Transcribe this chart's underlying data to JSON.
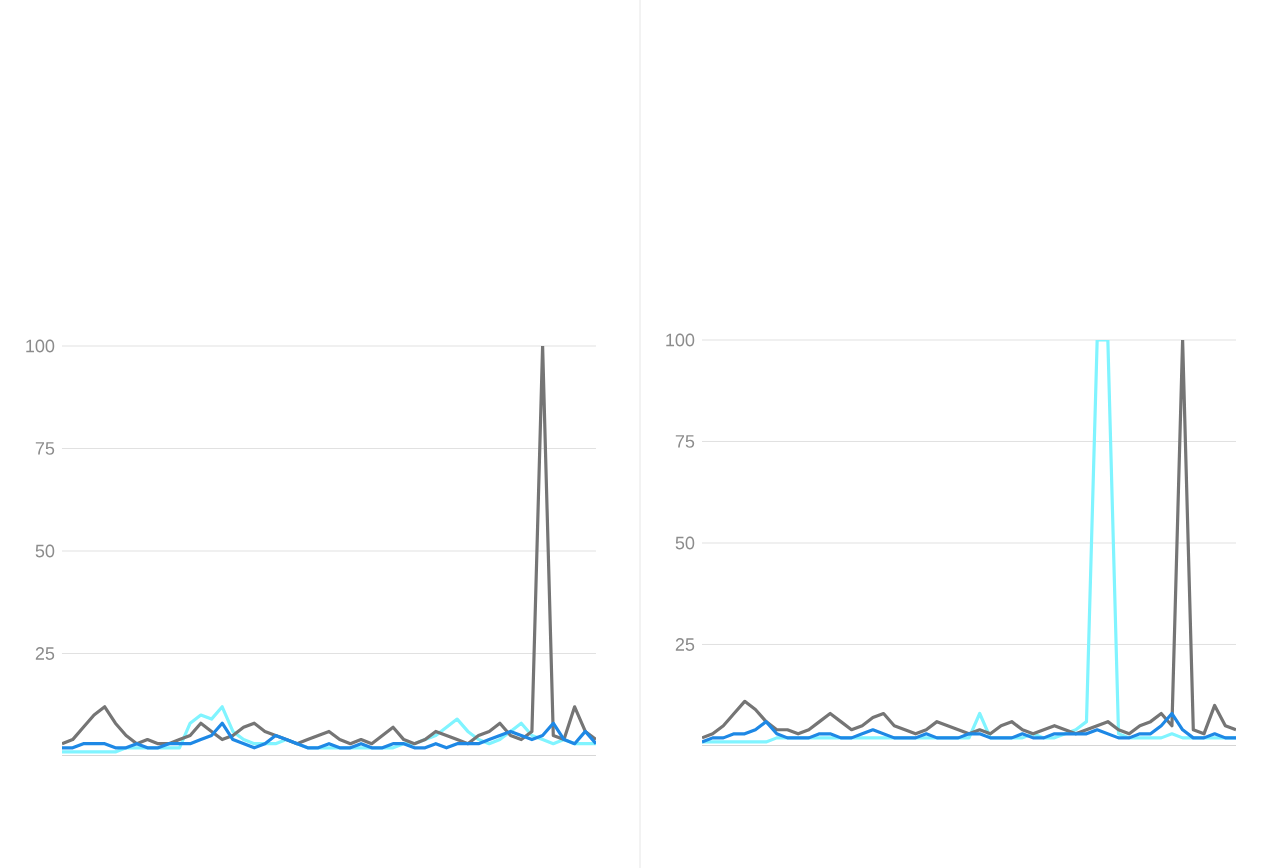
{
  "chart_data": [
    {
      "type": "line",
      "categories": [
        null,
        null,
        null,
        null,
        null,
        null,
        null,
        null,
        null,
        null,
        null,
        null,
        null,
        null,
        null,
        null,
        null,
        null,
        null,
        null,
        null,
        null,
        null,
        null,
        null,
        null,
        null,
        null,
        null,
        null,
        null,
        null,
        null,
        null,
        null,
        null,
        null,
        null,
        null,
        null,
        null,
        null,
        null,
        null,
        null,
        null,
        null,
        null,
        null,
        null,
        null
      ],
      "ylim": [
        0,
        100
      ],
      "yticks": [
        25,
        50,
        75,
        100
      ],
      "grid": "y",
      "series": [
        {
          "color": "#80f4ff",
          "values": [
            1,
            1,
            1,
            1,
            1,
            1,
            2,
            2,
            2,
            2,
            2,
            2,
            8,
            10,
            9,
            12,
            6,
            4,
            3,
            3,
            3,
            4,
            3,
            2,
            2,
            2,
            2,
            2,
            2,
            2,
            2,
            2,
            3,
            3,
            4,
            5,
            7,
            9,
            6,
            4,
            3,
            4,
            6,
            8,
            5,
            4,
            3,
            4,
            3,
            3,
            3
          ]
        },
        {
          "color": "#757575",
          "values": [
            3,
            4,
            7,
            10,
            12,
            8,
            5,
            3,
            4,
            3,
            3,
            4,
            5,
            8,
            6,
            4,
            5,
            7,
            8,
            6,
            5,
            4,
            3,
            4,
            5,
            6,
            4,
            3,
            4,
            3,
            5,
            7,
            4,
            3,
            4,
            6,
            5,
            4,
            3,
            5,
            6,
            8,
            5,
            4,
            6,
            100,
            5,
            4,
            12,
            6,
            4
          ]
        },
        {
          "color": "#1e88e5",
          "values": [
            2,
            2,
            3,
            3,
            3,
            2,
            2,
            3,
            2,
            2,
            3,
            3,
            3,
            4,
            5,
            8,
            4,
            3,
            2,
            3,
            5,
            4,
            3,
            2,
            2,
            3,
            2,
            2,
            3,
            2,
            2,
            3,
            3,
            2,
            2,
            3,
            2,
            3,
            3,
            3,
            4,
            5,
            6,
            5,
            4,
            5,
            8,
            4,
            3,
            6,
            3
          ]
        }
      ]
    },
    {
      "type": "line",
      "categories": [
        null,
        null,
        null,
        null,
        null,
        null,
        null,
        null,
        null,
        null,
        null,
        null,
        null,
        null,
        null,
        null,
        null,
        null,
        null,
        null,
        null,
        null,
        null,
        null,
        null,
        null,
        null,
        null,
        null,
        null,
        null,
        null,
        null,
        null,
        null,
        null,
        null,
        null,
        null,
        null,
        null,
        null,
        null,
        null,
        null,
        null,
        null,
        null,
        null,
        null,
        null
      ],
      "ylim": [
        0,
        100
      ],
      "yticks": [
        25,
        50,
        75,
        100
      ],
      "grid": "y",
      "series": [
        {
          "color": "#80f4ff",
          "values": [
            1,
            1,
            1,
            1,
            1,
            1,
            1,
            2,
            2,
            2,
            2,
            2,
            2,
            2,
            2,
            2,
            2,
            2,
            2,
            2,
            2,
            2,
            2,
            2,
            2,
            2,
            8,
            2,
            2,
            2,
            2,
            3,
            2,
            2,
            3,
            4,
            6,
            100,
            100,
            3,
            2,
            2,
            2,
            2,
            3,
            2,
            2,
            2,
            2,
            2,
            2
          ]
        },
        {
          "color": "#757575",
          "values": [
            2,
            3,
            5,
            8,
            11,
            9,
            6,
            4,
            4,
            3,
            4,
            6,
            8,
            6,
            4,
            5,
            7,
            8,
            5,
            4,
            3,
            4,
            6,
            5,
            4,
            3,
            4,
            3,
            5,
            6,
            4,
            3,
            4,
            5,
            4,
            3,
            4,
            5,
            6,
            4,
            3,
            5,
            6,
            8,
            5,
            100,
            4,
            3,
            10,
            5,
            4
          ]
        },
        {
          "color": "#1e88e5",
          "values": [
            1,
            2,
            2,
            3,
            3,
            4,
            6,
            3,
            2,
            2,
            2,
            3,
            3,
            2,
            2,
            3,
            4,
            3,
            2,
            2,
            2,
            3,
            2,
            2,
            2,
            3,
            3,
            2,
            2,
            2,
            3,
            2,
            2,
            3,
            3,
            3,
            3,
            4,
            3,
            2,
            2,
            3,
            3,
            5,
            8,
            4,
            2,
            2,
            3,
            2,
            2
          ]
        }
      ]
    }
  ]
}
